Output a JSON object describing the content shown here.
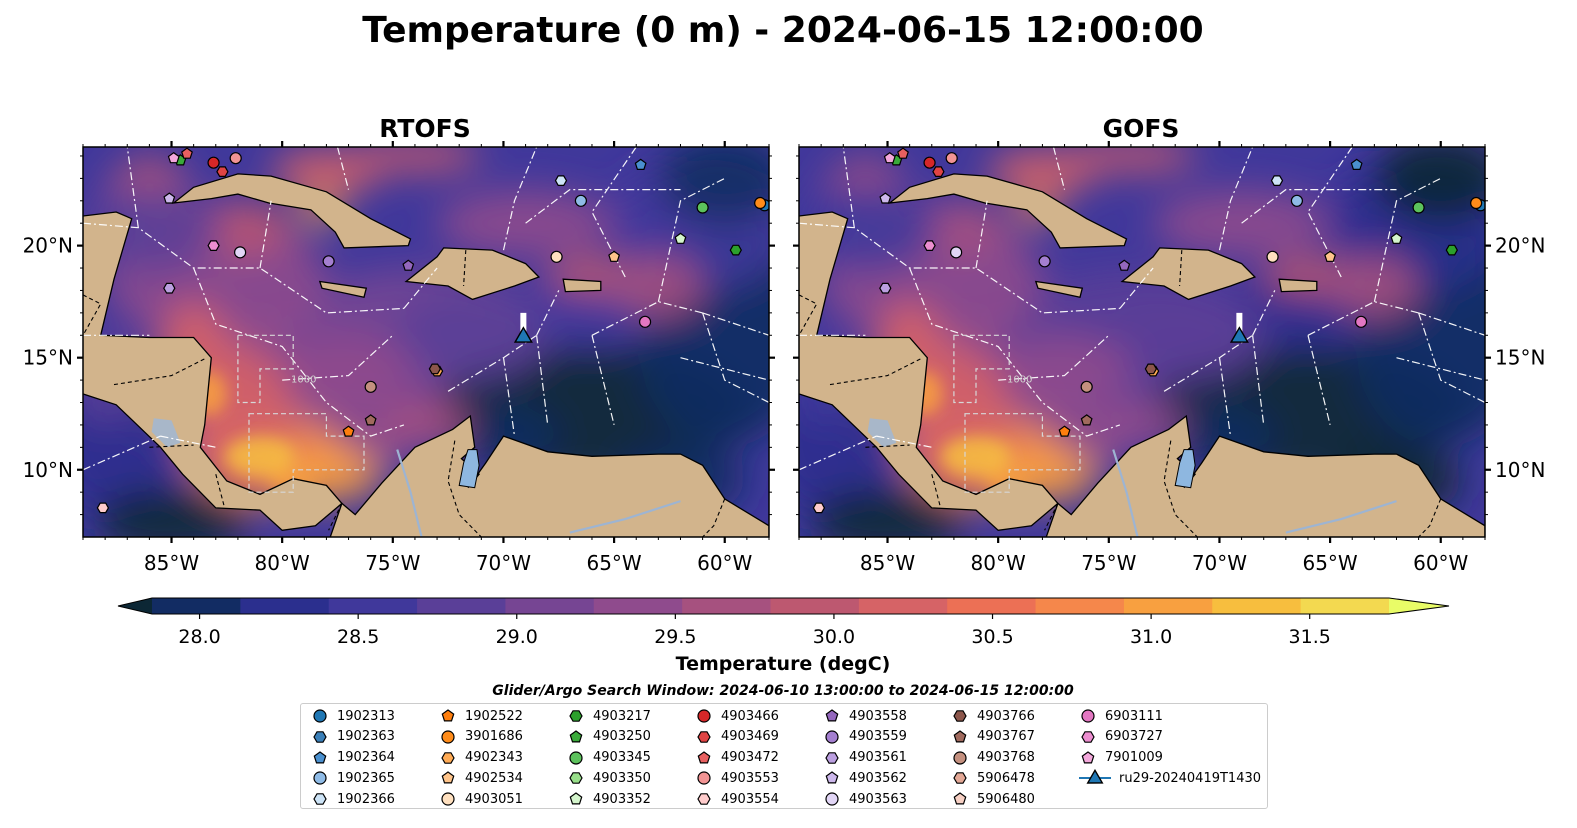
{
  "title": "Temperature (0 m) - 2024-06-15 12:00:00",
  "panels": [
    {
      "title": "RTOFS"
    },
    {
      "title": "GOFS"
    }
  ],
  "colors": {
    "land": "#d2b48c",
    "deep_ocean": "#0c2b3a",
    "colormap": [
      "#0c2735",
      "#122c63",
      "#2b2f8e",
      "#40389b",
      "#5a3f98",
      "#764593",
      "#8f4b8d",
      "#a6517f",
      "#bd5870",
      "#d66366",
      "#ec7055",
      "#f5874b",
      "#f8a040",
      "#f7be3e",
      "#f3d950",
      "#e9fc67"
    ]
  },
  "chart_data": [
    {
      "type": "heatmap",
      "name": "RTOFS",
      "xlim": [
        -89,
        -58
      ],
      "ylim": [
        7,
        24.4
      ],
      "x_ticks": [
        "85°W",
        "80°W",
        "75°W",
        "70°W",
        "65°W",
        "60°W"
      ],
      "x_tick_values": [
        -85,
        -80,
        -75,
        -70,
        -65,
        -60
      ],
      "y_ticks_left": [
        "20°N",
        "15°N",
        "10°N"
      ],
      "y_tick_values": [
        20,
        15,
        10
      ],
      "contour_labels": [
        "1000"
      ]
    },
    {
      "type": "heatmap",
      "name": "GOFS",
      "xlim": [
        -89,
        -58
      ],
      "ylim": [
        7,
        24.4
      ],
      "x_ticks": [
        "85°W",
        "80°W",
        "75°W",
        "70°W",
        "65°W",
        "60°W"
      ],
      "x_tick_values": [
        -85,
        -80,
        -75,
        -70,
        -65,
        -60
      ],
      "y_ticks_right": [
        "20°N",
        "15°N",
        "10°N"
      ],
      "y_tick_values": [
        20,
        15,
        10
      ],
      "contour_labels": [
        "1000"
      ]
    }
  ],
  "colorbar": {
    "label": "Temperature (degC)",
    "min": 27.85,
    "max": 31.75,
    "ticks": [
      "28.0",
      "28.5",
      "29.0",
      "29.5",
      "30.0",
      "30.5",
      "31.0",
      "31.5"
    ],
    "tick_values": [
      28.0,
      28.5,
      29.0,
      29.5,
      30.0,
      30.5,
      31.0,
      31.5
    ]
  },
  "search_window": "Glider/Argo Search Window: 2024-06-10 13:00:00 to 2024-06-15 12:00:00",
  "legend": [
    {
      "label": "1902313",
      "marker": "circle",
      "color": "#1f77b4"
    },
    {
      "label": "1902363",
      "marker": "hexagon",
      "color": "#3a7fb8"
    },
    {
      "label": "1902364",
      "marker": "pentagon",
      "color": "#4a90cf"
    },
    {
      "label": "1902365",
      "marker": "circle",
      "color": "#8fbbe6"
    },
    {
      "label": "1902366",
      "marker": "hexagon",
      "color": "#cde4f7"
    },
    {
      "label": "1902522",
      "marker": "pentagon",
      "color": "#ff7f0e"
    },
    {
      "label": "3901686",
      "marker": "circle",
      "color": "#ff8c1a"
    },
    {
      "label": "4902343",
      "marker": "hexagon",
      "color": "#ffab55"
    },
    {
      "label": "4902534",
      "marker": "pentagon",
      "color": "#ffc48a"
    },
    {
      "label": "4903051",
      "marker": "circle",
      "color": "#ffe0bf"
    },
    {
      "label": "4903217",
      "marker": "hexagon",
      "color": "#2ca02c"
    },
    {
      "label": "4903250",
      "marker": "pentagon",
      "color": "#3aaa3a"
    },
    {
      "label": "4903345",
      "marker": "circle",
      "color": "#5cc25c"
    },
    {
      "label": "4903350",
      "marker": "hexagon",
      "color": "#98df8a"
    },
    {
      "label": "4903352",
      "marker": "pentagon",
      "color": "#d4f5cc"
    },
    {
      "label": "4903466",
      "marker": "circle",
      "color": "#d62728"
    },
    {
      "label": "4903469",
      "marker": "hexagon",
      "color": "#e04444"
    },
    {
      "label": "4903472",
      "marker": "pentagon",
      "color": "#e86060"
    },
    {
      "label": "4903553",
      "marker": "circle",
      "color": "#f29494"
    },
    {
      "label": "4903554",
      "marker": "hexagon",
      "color": "#ffcccc"
    },
    {
      "label": "4903558",
      "marker": "pentagon",
      "color": "#9467bd"
    },
    {
      "label": "4903559",
      "marker": "circle",
      "color": "#a47fd0"
    },
    {
      "label": "4903561",
      "marker": "hexagon",
      "color": "#bb9fe0"
    },
    {
      "label": "4903562",
      "marker": "pentagon",
      "color": "#cdb8ec"
    },
    {
      "label": "4903563",
      "marker": "circle",
      "color": "#e2d6f6"
    },
    {
      "label": "4903766",
      "marker": "hexagon",
      "color": "#8c564b"
    },
    {
      "label": "4903767",
      "marker": "pentagon",
      "color": "#a06a5e"
    },
    {
      "label": "4903768",
      "marker": "circle",
      "color": "#c4907f"
    },
    {
      "label": "5906478",
      "marker": "hexagon",
      "color": "#e3a896"
    },
    {
      "label": "5906480",
      "marker": "pentagon",
      "color": "#f7d0c4"
    },
    {
      "label": "6903111",
      "marker": "circle",
      "color": "#e377c2"
    },
    {
      "label": "6903727",
      "marker": "hexagon",
      "color": "#ec8ed0"
    },
    {
      "label": "7901009",
      "marker": "pentagon",
      "color": "#f4a8dc"
    },
    {
      "label": "ru29-20240419T1430",
      "marker": "triangle-line",
      "color": "#1f77b4"
    }
  ],
  "observations": [
    {
      "id": "1902313",
      "lon": -58.2,
      "lat": 21.8
    },
    {
      "id": "1902364",
      "lon": -63.8,
      "lat": 23.6
    },
    {
      "id": "1902365",
      "lon": -66.5,
      "lat": 22.0
    },
    {
      "id": "1902366",
      "lon": -67.4,
      "lat": 22.9
    },
    {
      "id": "1902522",
      "lon": -77.0,
      "lat": 11.7
    },
    {
      "id": "3901686",
      "lon": -58.4,
      "lat": 21.9
    },
    {
      "id": "4902343",
      "lon": -73.0,
      "lat": 14.4
    },
    {
      "id": "4902534",
      "lon": -65.0,
      "lat": 19.5
    },
    {
      "id": "4903051",
      "lon": -67.6,
      "lat": 19.5
    },
    {
      "id": "4903217",
      "lon": -59.5,
      "lat": 19.8
    },
    {
      "id": "4903250",
      "lon": -84.6,
      "lat": 23.8
    },
    {
      "id": "4903345",
      "lon": -61.0,
      "lat": 21.7
    },
    {
      "id": "4903352",
      "lon": -62.0,
      "lat": 20.3
    },
    {
      "id": "4903466",
      "lon": -83.1,
      "lat": 23.7
    },
    {
      "id": "4903469",
      "lon": -82.7,
      "lat": 23.3
    },
    {
      "id": "4903472",
      "lon": -84.3,
      "lat": 24.1
    },
    {
      "id": "4903553",
      "lon": -82.1,
      "lat": 23.9
    },
    {
      "id": "4903554",
      "lon": -88.1,
      "lat": 8.3
    },
    {
      "id": "4903558",
      "lon": -74.3,
      "lat": 19.1
    },
    {
      "id": "4903559",
      "lon": -77.9,
      "lat": 19.3
    },
    {
      "id": "4903561",
      "lon": -85.1,
      "lat": 18.1
    },
    {
      "id": "4903562",
      "lon": -85.1,
      "lat": 22.1
    },
    {
      "id": "4903563",
      "lon": -81.9,
      "lat": 19.7
    },
    {
      "id": "4903766",
      "lon": -73.1,
      "lat": 14.5
    },
    {
      "id": "4903767",
      "lon": -76.0,
      "lat": 12.2
    },
    {
      "id": "4903768",
      "lon": -76.0,
      "lat": 13.7
    },
    {
      "id": "6903111",
      "lon": -63.6,
      "lat": 16.6
    },
    {
      "id": "6903727",
      "lon": -83.1,
      "lat": 20.0
    },
    {
      "id": "7901009",
      "lon": -84.9,
      "lat": 23.9
    },
    {
      "id": "ru29-20240419T1430",
      "lon": -69.1,
      "lat": 16.0
    }
  ]
}
